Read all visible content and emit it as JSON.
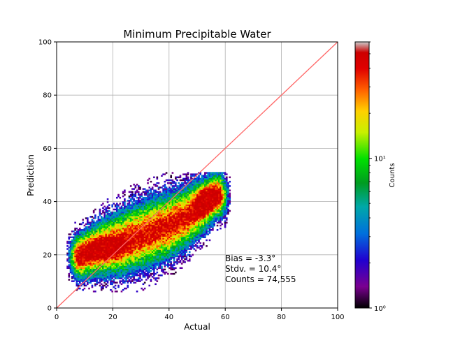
{
  "chart_data": {
    "type": "heatmap",
    "title": "Minimum Precipitable Water",
    "xlabel": "Actual",
    "ylabel": "Prediction",
    "xlim": [
      0,
      100
    ],
    "ylim": [
      0,
      100
    ],
    "xticks": [
      "0",
      "20",
      "40",
      "60",
      "80",
      "100"
    ],
    "yticks": [
      "0",
      "20",
      "40",
      "60",
      "80",
      "100"
    ],
    "grid": true,
    "reference_line": {
      "from": [
        0,
        0
      ],
      "to": [
        100,
        100
      ],
      "color": "#ff6666"
    },
    "density_extent": {
      "x": [
        3,
        62
      ],
      "y": [
        6,
        51
      ]
    },
    "density_ridge": [
      [
        8,
        19
      ],
      [
        15,
        22
      ],
      [
        22,
        24
      ],
      [
        30,
        27
      ],
      [
        38,
        30
      ],
      [
        46,
        34
      ],
      [
        52,
        38
      ],
      [
        56,
        42
      ]
    ],
    "colorbar": {
      "label": "Counts",
      "scale": "log",
      "range": [
        1,
        60
      ],
      "ticks": [
        "10⁰",
        "10¹"
      ],
      "colormap": "nipy_spectral"
    },
    "annotations": [
      "Bias = -3.3°",
      "Stdv. = 10.4°",
      "Counts = 74,555"
    ]
  }
}
